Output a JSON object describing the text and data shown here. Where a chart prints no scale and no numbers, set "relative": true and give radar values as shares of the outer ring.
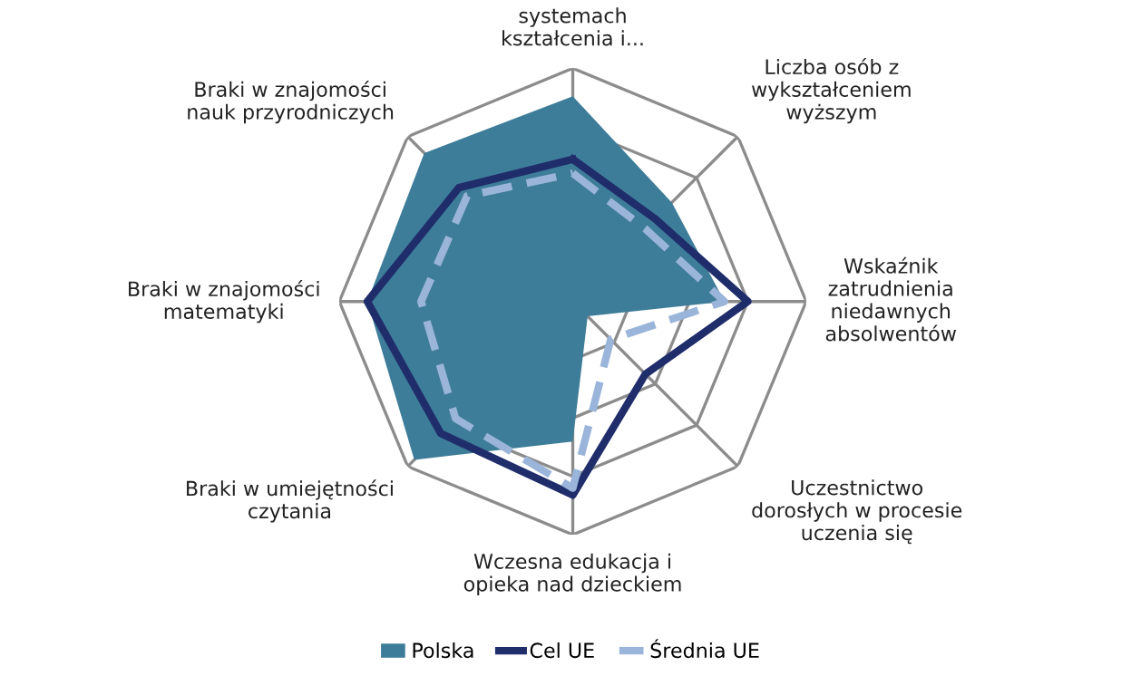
{
  "chart_data": {
    "type": "radar",
    "relative": true,
    "grid": true,
    "legend": "bottom",
    "marker": "none",
    "categories": [
      "systemach\nkształcenia i...",
      "Liczba osób z\nwykształceniem\nwyższym",
      "Wskaźnik\nzatrudnienia\nniedawnych\nabsolwentów",
      "Uczestnictwo\ndorosłych w procesie\nuczenia się",
      "Wczesna edukacja i\nopieka nad dzieckiem",
      "Braki w umiejętności\nczytania",
      "Braki w znajomości\nmatematyki",
      "Braki w znajomości\nnauk przyrodniczych"
    ],
    "series": [
      {
        "name": "Polska",
        "color": "#3e7d99",
        "values": [
          0.88,
          0.6,
          0.65,
          0.09,
          0.6,
          0.96,
          0.88,
          0.9
        ]
      },
      {
        "name": "Cel UE",
        "color": "#1f2d6b",
        "line_style": "solid",
        "values": [
          0.61,
          0.5,
          0.75,
          0.44,
          0.83,
          0.8,
          0.88,
          0.69
        ]
      },
      {
        "name": "Średnia UE",
        "color": "#9ab5d9",
        "line_style": "dashed",
        "values": [
          0.55,
          0.44,
          0.65,
          0.23,
          0.8,
          0.71,
          0.65,
          0.64
        ]
      }
    ]
  }
}
